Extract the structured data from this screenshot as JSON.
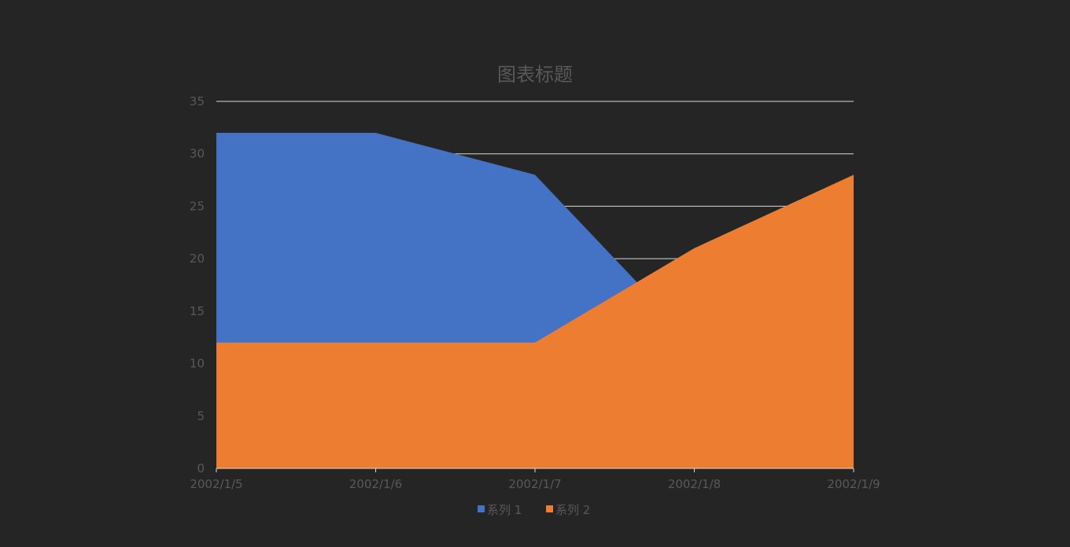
{
  "chart_data": {
    "type": "area",
    "title": "图表标题",
    "xlabel": "",
    "ylabel": "",
    "categories": [
      "2002/1/5",
      "2002/1/6",
      "2002/1/7",
      "2002/1/8",
      "2002/1/9"
    ],
    "series": [
      {
        "name": "系列 1",
        "values": [
          32,
          32,
          28,
          12,
          15
        ]
      },
      {
        "name": "系列 2",
        "values": [
          12,
          12,
          12,
          21,
          28
        ]
      }
    ],
    "ylim": [
      0,
      35
    ],
    "yticks": [
      0,
      5,
      10,
      15,
      20,
      25,
      30,
      35
    ],
    "grid": "horizontal",
    "legend": "bottom-center",
    "colors": {
      "background": "#252525",
      "series1": "#4472C4",
      "series2": "#ED7D31",
      "gridline": "#d9d9d9",
      "text": "#595959"
    }
  }
}
